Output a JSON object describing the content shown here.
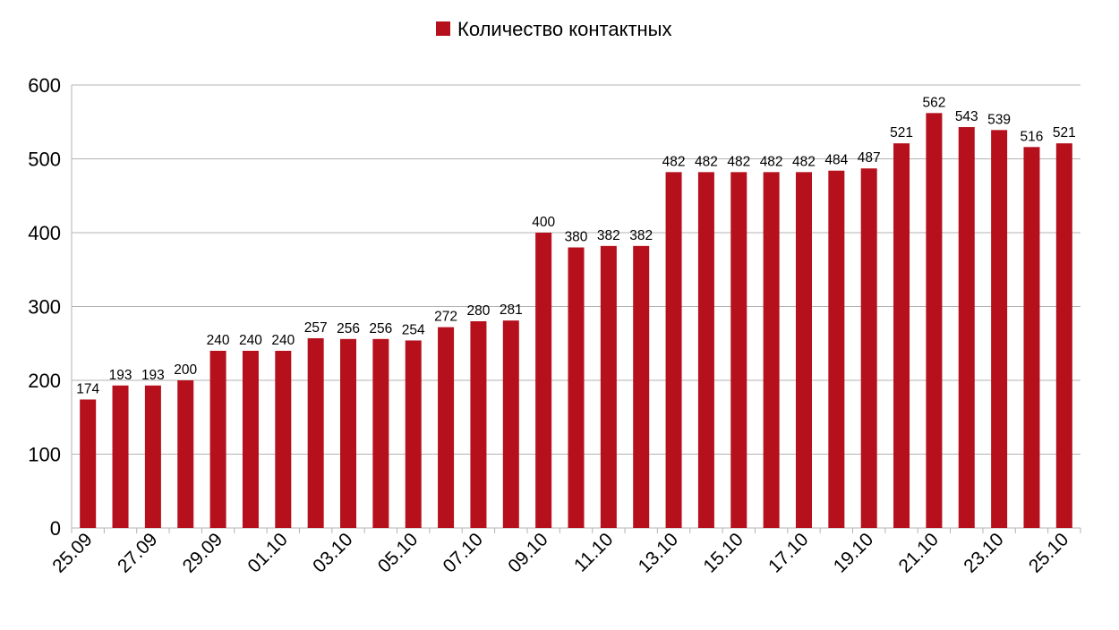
{
  "colors": {
    "bar": "#b5101c",
    "grid": "#b3b3b3",
    "axis": "#b3b3b3"
  },
  "chart_data": {
    "type": "bar",
    "categories": [
      "25.09",
      "26.09",
      "27.09",
      "28.09",
      "29.09",
      "30.09",
      "01.10",
      "02.10",
      "03.10",
      "04.10",
      "05.10",
      "06.10",
      "07.10",
      "08.10",
      "09.10",
      "10.10",
      "11.10",
      "12.10",
      "13.10",
      "14.10",
      "15.10",
      "16.10",
      "17.10",
      "18.10",
      "19.10",
      "20.10",
      "21.10",
      "22.10",
      "23.10",
      "24.10",
      "25.10"
    ],
    "tick_labels": [
      "25.09",
      "27.09",
      "29.09",
      "01.10",
      "03.10",
      "05.10",
      "07.10",
      "09.10",
      "11.10",
      "13.10",
      "15.10",
      "17.10",
      "19.10",
      "21.10",
      "23.10",
      "25.10"
    ],
    "series": [
      {
        "name": "Количество контактных",
        "values": [
          174,
          193,
          193,
          200,
          240,
          240,
          240,
          257,
          256,
          256,
          254,
          272,
          280,
          281,
          400,
          380,
          382,
          382,
          482,
          482,
          482,
          482,
          482,
          484,
          487,
          521,
          562,
          543,
          539,
          516,
          521
        ]
      }
    ],
    "ylim": [
      0,
      600
    ],
    "yticks": [
      0,
      100,
      200,
      300,
      400,
      500,
      600
    ],
    "grid": true,
    "legend": "top-center",
    "data_labels": true
  }
}
